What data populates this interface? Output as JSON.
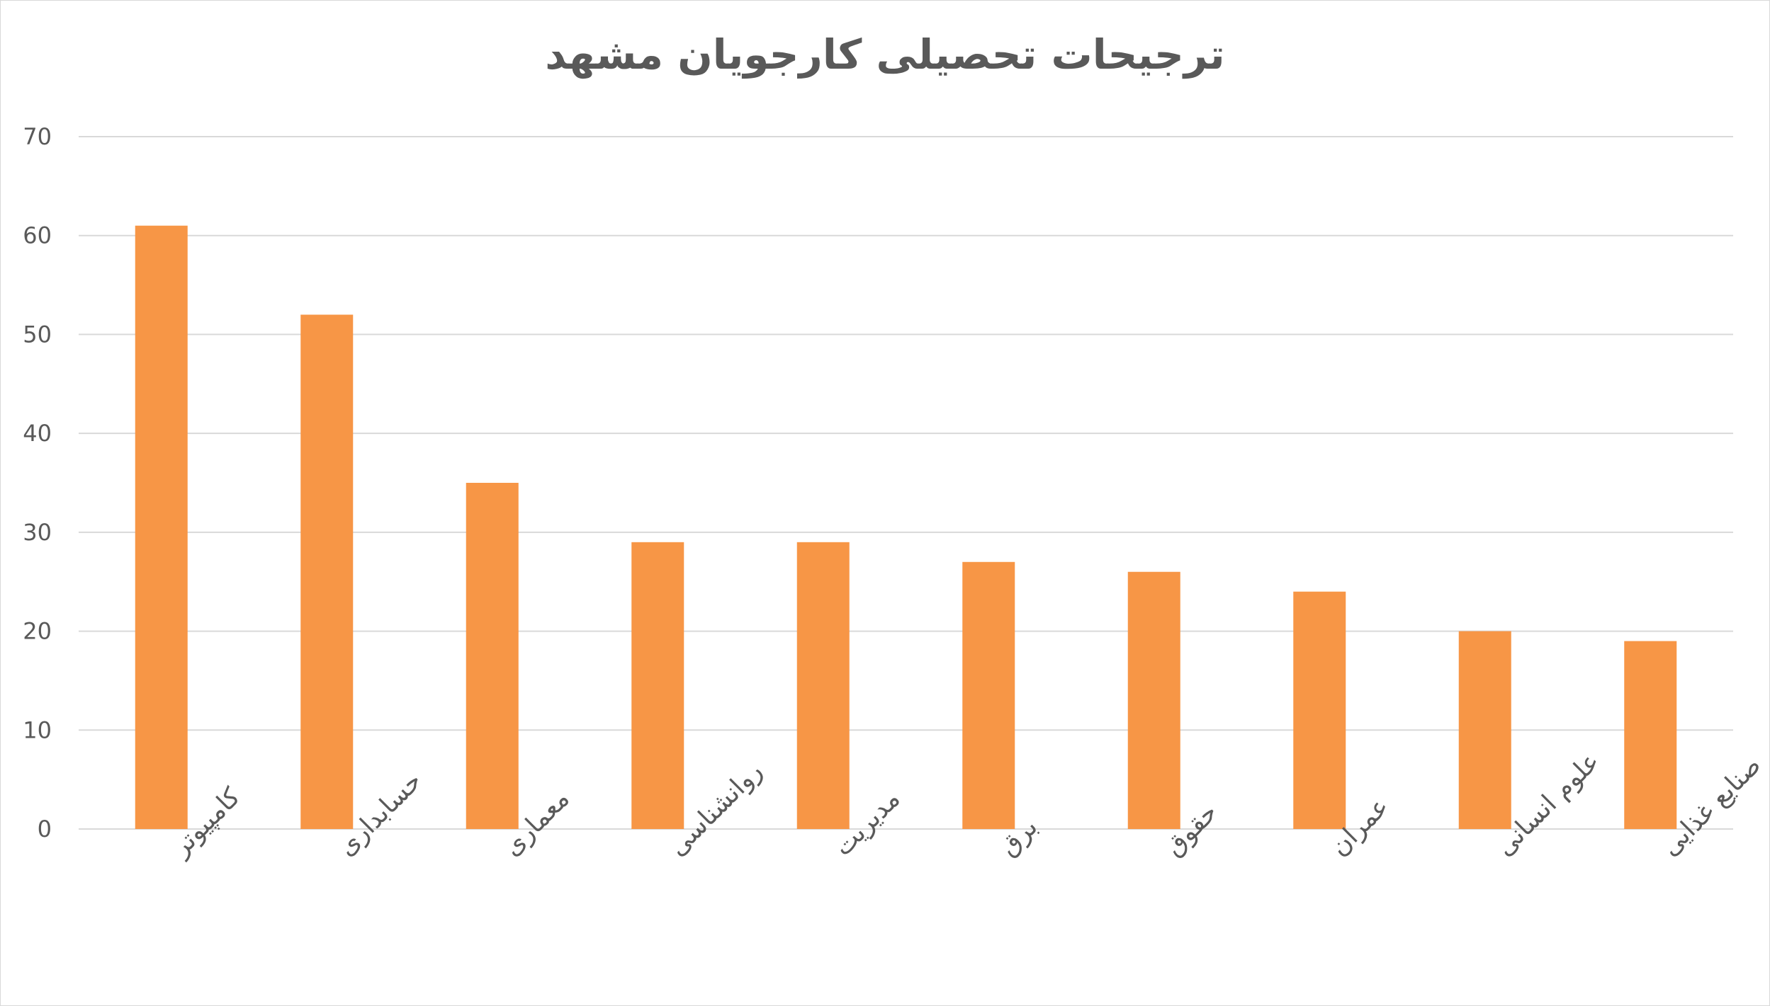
{
  "chart_data": {
    "type": "bar",
    "title": "ترجیحات تحصیلی کارجویان مشهد",
    "categories": [
      "کامپیوتر",
      "حسابداری",
      "معماری",
      "روانشناسی",
      "مدیریت",
      "برق",
      "حقوق",
      "عمران",
      "علوم انسانی",
      "صنایع غذایی"
    ],
    "values": [
      61,
      52,
      35,
      29,
      29,
      27,
      26,
      24,
      20,
      19
    ],
    "ylim": [
      0,
      70
    ],
    "yticks": [
      0,
      10,
      20,
      30,
      40,
      50,
      60,
      70
    ],
    "grid": true,
    "legend": "none",
    "bar_color": "#F79646",
    "grid_color": "#d9d9d9",
    "text_color": "#595959"
  }
}
